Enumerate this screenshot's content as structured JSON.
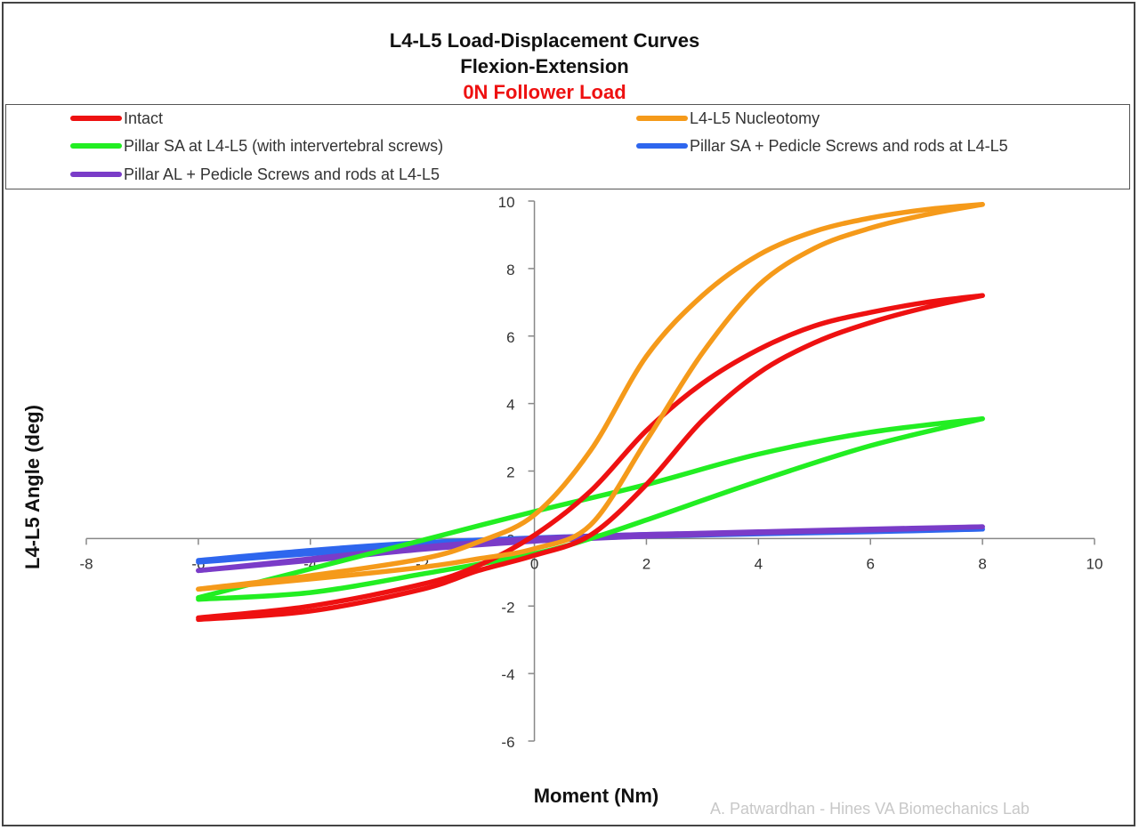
{
  "chart_data": {
    "type": "line",
    "title": "L4-L5 Load-Displacement Curves",
    "subtitle": "Flexion-Extension",
    "subtitle2": "0N Follower Load",
    "xlabel": "Moment (Nm)",
    "ylabel": "L4-L5 Angle (deg)",
    "xlim": [
      -8,
      10
    ],
    "ylim": [
      -6,
      10
    ],
    "xticks": [
      "-8",
      "-6",
      "-4",
      "-2",
      "0",
      "2",
      "4",
      "6",
      "8",
      "10"
    ],
    "yticks": [
      "-6",
      "-4",
      "-2",
      "0",
      "2",
      "4",
      "6",
      "8",
      "10"
    ],
    "grid": false,
    "legend_position": "top",
    "credit": "A. Patwardhan - Hines VA Biomechanics Lab",
    "series": [
      {
        "name": "Intact",
        "color": "#ee1111",
        "loading": [
          [
            -6,
            -2.35
          ],
          [
            -4,
            -2.0
          ],
          [
            -2,
            -1.35
          ],
          [
            -1,
            -0.8
          ],
          [
            0,
            0.1
          ],
          [
            1,
            1.4
          ],
          [
            2,
            3.2
          ],
          [
            3,
            4.6
          ],
          [
            4,
            5.6
          ],
          [
            5,
            6.3
          ],
          [
            6,
            6.7
          ],
          [
            7,
            7.0
          ],
          [
            8,
            7.2
          ]
        ],
        "unloading": [
          [
            8,
            7.2
          ],
          [
            7,
            6.85
          ],
          [
            6,
            6.4
          ],
          [
            5,
            5.8
          ],
          [
            4,
            4.9
          ],
          [
            3,
            3.5
          ],
          [
            2,
            1.6
          ],
          [
            1,
            0.1
          ],
          [
            0,
            -0.5
          ],
          [
            -1,
            -0.95
          ],
          [
            -2,
            -1.5
          ],
          [
            -4,
            -2.15
          ],
          [
            -6,
            -2.4
          ]
        ]
      },
      {
        "name": "L4-L5 Nucleotomy",
        "color": "#f59a1a",
        "loading": [
          [
            -6,
            -1.5
          ],
          [
            -4,
            -1.1
          ],
          [
            -2,
            -0.6
          ],
          [
            -1,
            -0.1
          ],
          [
            0,
            0.7
          ],
          [
            1,
            2.6
          ],
          [
            2,
            5.4
          ],
          [
            3,
            7.2
          ],
          [
            4,
            8.4
          ],
          [
            5,
            9.1
          ],
          [
            6,
            9.5
          ],
          [
            7,
            9.75
          ],
          [
            8,
            9.9
          ]
        ],
        "unloading": [
          [
            8,
            9.9
          ],
          [
            7,
            9.6
          ],
          [
            6,
            9.2
          ],
          [
            5,
            8.6
          ],
          [
            4,
            7.5
          ],
          [
            3,
            5.5
          ],
          [
            2,
            2.9
          ],
          [
            1,
            0.4
          ],
          [
            0,
            -0.3
          ],
          [
            -1,
            -0.6
          ],
          [
            -2,
            -0.85
          ],
          [
            -4,
            -1.2
          ],
          [
            -6,
            -1.5
          ]
        ]
      },
      {
        "name": "Pillar SA at L4-L5 (with intervertebral screws)",
        "color": "#22ee22",
        "loading": [
          [
            -6,
            -1.75
          ],
          [
            -4,
            -0.9
          ],
          [
            -2,
            -0.05
          ],
          [
            0,
            0.8
          ],
          [
            2,
            1.6
          ],
          [
            4,
            2.5
          ],
          [
            6,
            3.15
          ],
          [
            8,
            3.55
          ]
        ],
        "unloading": [
          [
            8,
            3.55
          ],
          [
            6,
            2.75
          ],
          [
            4,
            1.7
          ],
          [
            2,
            0.55
          ],
          [
            1,
            0.0
          ],
          [
            0,
            -0.45
          ],
          [
            -2,
            -1.05
          ],
          [
            -4,
            -1.6
          ],
          [
            -6,
            -1.8
          ]
        ]
      },
      {
        "name": "Pillar SA + Pedicle Screws and rods at L4-L5",
        "color": "#2e66ee",
        "loading": [
          [
            -6,
            -0.65
          ],
          [
            -4,
            -0.35
          ],
          [
            -2,
            -0.12
          ],
          [
            0,
            0.02
          ],
          [
            2,
            0.12
          ],
          [
            4,
            0.18
          ],
          [
            6,
            0.22
          ],
          [
            8,
            0.28
          ]
        ],
        "unloading": [
          [
            8,
            0.28
          ],
          [
            6,
            0.2
          ],
          [
            4,
            0.14
          ],
          [
            2,
            0.07
          ],
          [
            0,
            -0.05
          ],
          [
            -2,
            -0.22
          ],
          [
            -4,
            -0.45
          ],
          [
            -6,
            -0.7
          ]
        ]
      },
      {
        "name": "Pillar AL + Pedicle Screws and rods at L4-L5",
        "color": "#7a3cc8",
        "loading": [
          [
            -6,
            -0.95
          ],
          [
            -4,
            -0.6
          ],
          [
            -2,
            -0.25
          ],
          [
            0,
            0.0
          ],
          [
            2,
            0.12
          ],
          [
            4,
            0.2
          ],
          [
            6,
            0.28
          ],
          [
            8,
            0.35
          ]
        ],
        "unloading": [
          [
            8,
            0.35
          ],
          [
            6,
            0.25
          ],
          [
            4,
            0.17
          ],
          [
            2,
            0.07
          ],
          [
            0,
            -0.08
          ],
          [
            -2,
            -0.32
          ],
          [
            -4,
            -0.65
          ],
          [
            -6,
            -0.95
          ]
        ]
      }
    ]
  }
}
